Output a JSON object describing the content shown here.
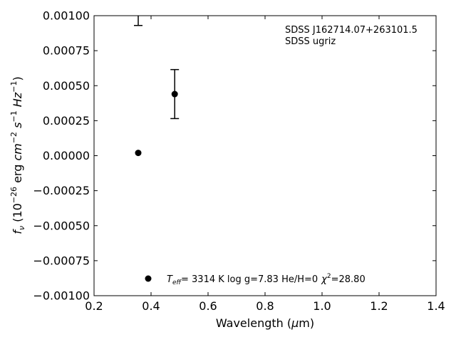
{
  "chart_data": {
    "type": "scatter",
    "title": "",
    "xlabel": "Wavelength (μm)",
    "ylabel": "fν (10⁻²⁶ erg cm⁻² s⁻¹ Hz⁻¹)",
    "xlim": [
      0.2,
      1.4
    ],
    "ylim": [
      -0.001,
      0.001
    ],
    "x_ticks": [
      0.2,
      0.4,
      0.6,
      0.8,
      1.0,
      1.2,
      1.4
    ],
    "x_tick_labels": [
      "0.2",
      "0.4",
      "0.6",
      "0.8",
      "1.0",
      "1.2",
      "1.4"
    ],
    "y_ticks": [
      -0.001,
      -0.00075,
      -0.0005,
      -0.00025,
      0,
      0.00025,
      0.0005,
      0.00075,
      0.001
    ],
    "y_tick_labels": [
      "−0.00100",
      "−0.00075",
      "−0.00050",
      "−0.00025",
      "0.00000",
      "0.00025",
      "0.00050",
      "0.00075",
      "0.00100"
    ],
    "grid": false,
    "observed": [
      {
        "x": 0.355,
        "y": 0.00116,
        "err": 0.00023
      },
      {
        "x": 0.483,
        "y": 0.00044,
        "err": 0.000175
      }
    ],
    "model": [
      {
        "x": 0.355,
        "y": 2e-05
      }
    ],
    "annotations": {
      "object_name": "SDSS J162714.07+263101.5",
      "filter_set": "SDSS ugriz"
    },
    "legend": {
      "placement": "lower-center",
      "teff_symbol": "T",
      "teff_subscript": "eff",
      "teff_rest": "=  3314 K  log g=7.83  He/H=0",
      "chi_symbol": "χ",
      "chi_exponent": "2",
      "chi_rest": "=28.80"
    },
    "marker_color": "#000000"
  }
}
